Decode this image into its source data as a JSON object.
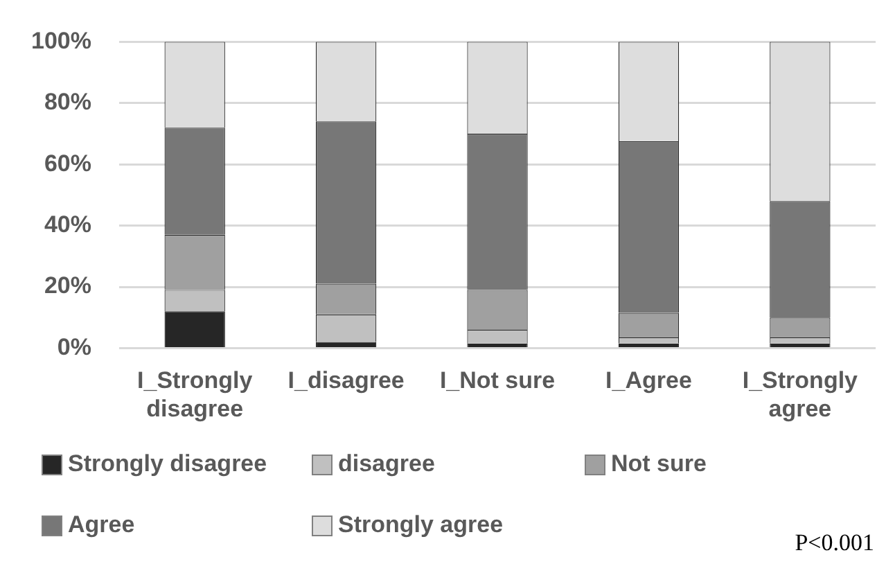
{
  "chart_data": {
    "type": "bar",
    "stacked": true,
    "categories": [
      "I_Strongly disagree",
      "I_disagree",
      "I_Not sure",
      "I_Agree",
      "I_Strongly agree"
    ],
    "series": [
      {
        "name": "Strongly disagree",
        "color": "#262626",
        "values": [
          12,
          2,
          1.5,
          1.5,
          1.5
        ]
      },
      {
        "name": "disagree",
        "color": "#c0c0c0",
        "values": [
          7,
          9,
          4.5,
          2,
          2
        ]
      },
      {
        "name": "Not sure",
        "color": "#a0a0a0",
        "values": [
          18,
          10,
          13,
          8,
          6.5
        ]
      },
      {
        "name": "Agree",
        "color": "#777777",
        "values": [
          35,
          53,
          51,
          56,
          38
        ]
      },
      {
        "name": "Strongly agree",
        "color": "#dddddd",
        "values": [
          28,
          26,
          30,
          32.5,
          52
        ]
      }
    ],
    "ylim": [
      0,
      100
    ],
    "yticks": [
      {
        "value": 0,
        "label": "0%"
      },
      {
        "value": 20,
        "label": "20%"
      },
      {
        "value": 40,
        "label": "40%"
      },
      {
        "value": 60,
        "label": "60%"
      },
      {
        "value": 80,
        "label": "80%"
      },
      {
        "value": 100,
        "label": "100%"
      }
    ],
    "grid": "y",
    "legend": "bottom",
    "annotations": [
      "P<0.001"
    ]
  }
}
